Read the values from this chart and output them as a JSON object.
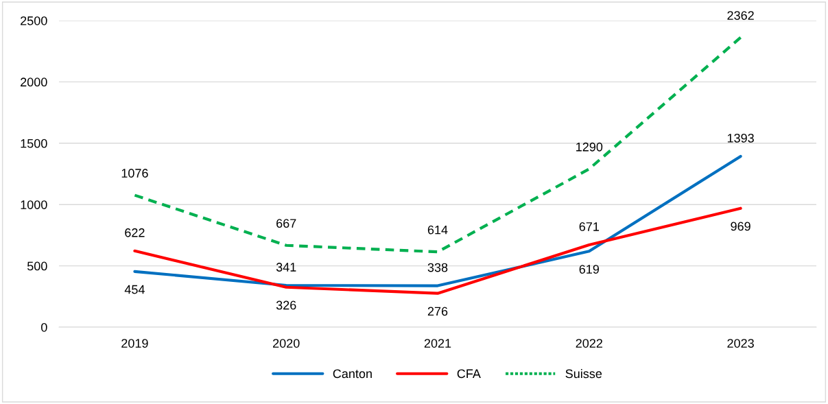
{
  "chart_data": {
    "type": "line",
    "categories": [
      "2019",
      "2020",
      "2021",
      "2022",
      "2023"
    ],
    "series": [
      {
        "name": "Canton",
        "color": "#0070c0",
        "values": [
          454,
          341,
          338,
          619,
          1393
        ],
        "line_style": "solid"
      },
      {
        "name": "CFA",
        "color": "#ff0000",
        "values": [
          622,
          326,
          276,
          671,
          969
        ],
        "line_style": "solid"
      },
      {
        "name": "Suisse",
        "color": "#00b050",
        "values": [
          1076,
          667,
          614,
          1290,
          2362
        ],
        "line_style": "dashed"
      }
    ],
    "ylim": [
      0,
      2500
    ],
    "yticks": [
      0,
      500,
      1000,
      1500,
      2000,
      2500
    ],
    "grid": "y",
    "legend": "bottom",
    "data_labels": true,
    "marker": "none"
  }
}
